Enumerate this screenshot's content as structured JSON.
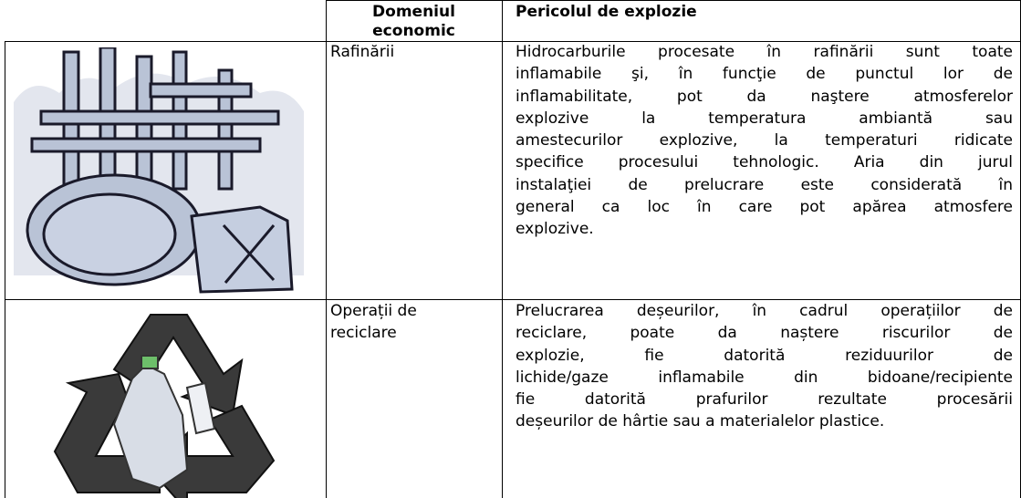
{
  "table": {
    "header": [
      [
        "Domeniul",
        "economic"
      ],
      [
        "Pericolul de explozie"
      ]
    ],
    "rows": [
      [
        [
          "Rafinării"
        ],
        [
          "Hidrocarburile procesate în rafinării sunt toate",
          "inflamabile şi, în funcţie de punctul lor de",
          "inflamabilitate, pot da naştere atmosferelor",
          "explozive la temperatura ambiantă sau",
          "amestecurilor explozive, la temperaturi ridicate",
          "specifice procesului tehnologic. Aria din jurul",
          "instalaţiei de prelucrare este considerată în",
          "general ca loc în care pot apărea atmosfere",
          "explozive."
        ]
      ],
      [
        [
          "Operații de",
          "reciclare"
        ],
        [
          "Prelucrarea deșeurilor, în cadrul operațiilor de",
          "reciclare, poate da naștere riscurilor de",
          "explozie, fie datorită reziduurilor de",
          "lichide/gaze inflamabile din bidoane/recipiente",
          "fie datorită prafurilor rezultate procesării",
          "deșeurilor de hârtie sau a materialelor plastice."
        ]
      ]
    ]
  }
}
